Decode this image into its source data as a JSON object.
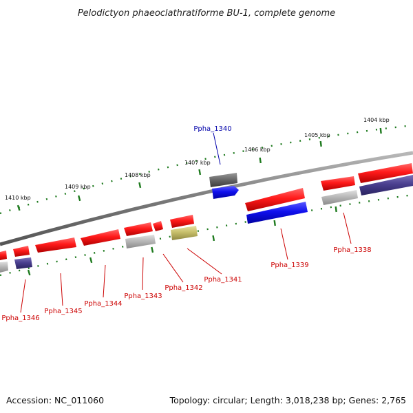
{
  "title": "Pelodictyon phaeoclathratiforme BU-1, complete genome",
  "footer": {
    "accession": "Accession: NC_011060",
    "topology": "Topology: circular; Length: 3,018,238 bp; Genes: 2,765"
  },
  "colors": {
    "backbone": "#8a8a8a",
    "tick": "#1e7a1e",
    "label_red": "#cc0000",
    "label_blue": "#0000aa",
    "gene_red": "#ff1a1a",
    "gene_blue": "#1010ee",
    "gene_purple": "#4a3f8f",
    "gene_gray": "#b8b8b8",
    "gene_darkgray": "#6a6a6a",
    "gene_olive": "#c7bf6a"
  },
  "scale_labels": [
    {
      "text": "1404 kbp"
    },
    {
      "text": "1405 kbp"
    },
    {
      "text": "1406 kbp"
    },
    {
      "text": "1407 kbp"
    },
    {
      "text": "1408 kbp"
    },
    {
      "text": "1409 kbp"
    },
    {
      "text": "1410 kbp"
    }
  ],
  "gene_labels": [
    {
      "text": "Ppha_1340",
      "color": "blue",
      "strand": "forward"
    },
    {
      "text": "Ppha_1338",
      "color": "red",
      "strand": "reverse"
    },
    {
      "text": "Ppha_1339",
      "color": "red",
      "strand": "reverse"
    },
    {
      "text": "Ppha_1341",
      "color": "red",
      "strand": "reverse"
    },
    {
      "text": "Ppha_1342",
      "color": "red",
      "strand": "reverse"
    },
    {
      "text": "Ppha_1343",
      "color": "red",
      "strand": "reverse"
    },
    {
      "text": "Ppha_1344",
      "color": "red",
      "strand": "reverse"
    },
    {
      "text": "Ppha_1345",
      "color": "red",
      "strand": "reverse"
    },
    {
      "text": "Ppha_1346",
      "color": "red",
      "strand": "reverse"
    }
  ]
}
